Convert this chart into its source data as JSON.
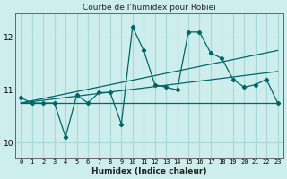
{
  "title": "Courbe de l'humidex pour Robiei",
  "xlabel": "Humidex (Indice chaleur)",
  "bg_color": "#ceeeed",
  "line_color": "#006666",
  "grid_color": "#a8d8d8",
  "xlim": [
    -0.5,
    23.5
  ],
  "ylim": [
    9.7,
    12.45
  ],
  "yticks": [
    10,
    11,
    12
  ],
  "xticks": [
    0,
    1,
    2,
    3,
    4,
    5,
    6,
    7,
    8,
    9,
    10,
    11,
    12,
    13,
    14,
    15,
    16,
    17,
    18,
    19,
    20,
    21,
    22,
    23
  ],
  "series1": [
    10.85,
    10.75,
    10.75,
    10.75,
    10.1,
    10.9,
    10.75,
    10.95,
    10.95,
    10.35,
    12.2,
    11.75,
    11.1,
    11.05,
    11.0,
    12.1,
    12.1,
    11.7,
    11.6,
    11.2,
    11.05,
    11.1,
    11.2,
    10.75
  ],
  "series2_x": [
    0,
    23
  ],
  "series2_y": [
    10.75,
    10.75
  ],
  "series3_x": [
    0,
    23
  ],
  "series3_y": [
    10.75,
    11.75
  ],
  "series4_x": [
    0,
    23
  ],
  "series4_y": [
    10.75,
    11.35
  ]
}
